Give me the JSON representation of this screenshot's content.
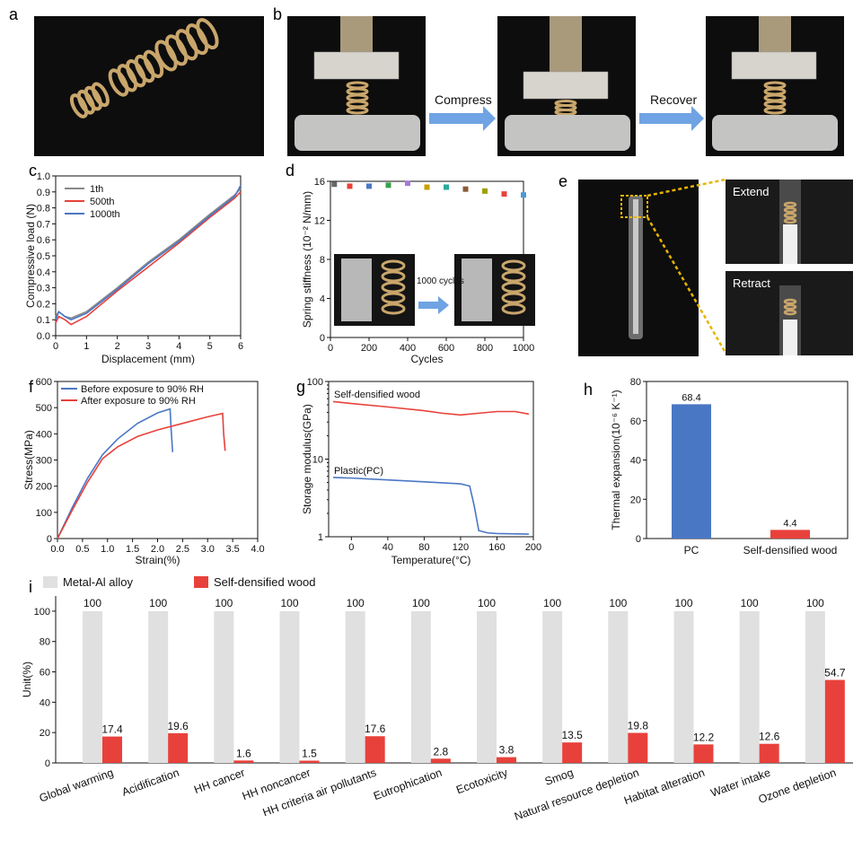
{
  "panels": {
    "a": "a",
    "b": "b",
    "c": "c",
    "d": "d",
    "e": "e",
    "f": "f",
    "g": "g",
    "h": "h",
    "i": "i"
  },
  "panel_b": {
    "compress_label": "Compress",
    "recover_label": "Recover"
  },
  "panel_d_inset": {
    "cycles_label": "1000 cycles"
  },
  "panel_e": {
    "extend_label": "Extend",
    "retract_label": "Retract"
  },
  "colors": {
    "red": "#e8413b",
    "blue": "#4a77c4",
    "gray": "#e0e0e0",
    "yellow": "#e7b400"
  },
  "chart_data": [
    {
      "id": "c",
      "type": "line",
      "xlabel": "Displacement (mm)",
      "ylabel": "Compressive load (N)",
      "xlim": [
        0,
        6
      ],
      "ylim": [
        0,
        1.0
      ],
      "xticks": [
        "0",
        "1",
        "2",
        "3",
        "4",
        "5",
        "6"
      ],
      "yticks": [
        "0.0",
        "0.1",
        "0.2",
        "0.3",
        "0.4",
        "0.5",
        "0.6",
        "0.7",
        "0.8",
        "0.9",
        "1.0"
      ],
      "series": [
        {
          "name": "1th",
          "color": "#888888",
          "x": [
            0,
            0.1,
            0.3,
            0.5,
            1,
            2,
            3,
            4,
            5,
            5.8,
            6
          ],
          "y": [
            0.12,
            0.15,
            0.12,
            0.11,
            0.15,
            0.3,
            0.46,
            0.6,
            0.76,
            0.88,
            0.92
          ]
        },
        {
          "name": "500th",
          "color": "#e8413b",
          "x": [
            0,
            0.1,
            0.3,
            0.5,
            1,
            2,
            3,
            4,
            5,
            5.8,
            6
          ],
          "y": [
            0.08,
            0.12,
            0.1,
            0.07,
            0.12,
            0.28,
            0.43,
            0.58,
            0.74,
            0.86,
            0.9
          ]
        },
        {
          "name": "1000th",
          "color": "#4a77c4",
          "x": [
            0,
            0.1,
            0.3,
            0.5,
            1,
            2,
            3,
            4,
            5,
            5.8,
            6
          ],
          "y": [
            0.1,
            0.15,
            0.12,
            0.1,
            0.14,
            0.29,
            0.45,
            0.59,
            0.75,
            0.87,
            0.94
          ]
        }
      ]
    },
    {
      "id": "d",
      "type": "scatter",
      "xlabel": "Cycles",
      "ylabel": "Spring stiffness (10⁻² N/mm)",
      "xlim": [
        0,
        1000
      ],
      "ylim": [
        0,
        16
      ],
      "xticks": [
        "0",
        "200",
        "400",
        "600",
        "800",
        "1000"
      ],
      "yticks": [
        "0",
        "4",
        "8",
        "12",
        "16"
      ],
      "x": [
        20,
        100,
        200,
        300,
        400,
        500,
        600,
        700,
        800,
        900,
        1000
      ],
      "y": [
        15.7,
        15.5,
        15.5,
        15.6,
        15.8,
        15.4,
        15.4,
        15.2,
        15.0,
        14.7,
        14.6
      ],
      "colors": [
        "#666666",
        "#e8413b",
        "#4a77c4",
        "#3aa04a",
        "#a678d8",
        "#c8a000",
        "#2aaa9a",
        "#8a5a3a",
        "#a0a000",
        "#e8413b",
        "#4a9ad8"
      ]
    },
    {
      "id": "f",
      "type": "line",
      "xlabel": "Strain(%)",
      "ylabel": "Stress(MPa)",
      "xlim": [
        0,
        4.0
      ],
      "ylim": [
        0,
        600
      ],
      "xticks": [
        "0.0",
        "0.5",
        "1.0",
        "1.5",
        "2.0",
        "2.5",
        "3.0",
        "3.5",
        "4.0"
      ],
      "yticks": [
        "0",
        "100",
        "200",
        "300",
        "400",
        "500",
        "600"
      ],
      "series": [
        {
          "name": "Before exposure to 90% RH",
          "color": "#4a77c4",
          "x": [
            0,
            0.3,
            0.6,
            0.9,
            1.2,
            1.6,
            2.0,
            2.25,
            2.27,
            2.3
          ],
          "y": [
            0,
            120,
            230,
            320,
            380,
            440,
            480,
            495,
            420,
            330
          ]
        },
        {
          "name": "After exposure to 90% RH",
          "color": "#e8413b",
          "x": [
            0,
            0.3,
            0.6,
            0.9,
            1.2,
            1.6,
            2.0,
            2.5,
            3.0,
            3.3,
            3.32,
            3.35
          ],
          "y": [
            0,
            110,
            215,
            305,
            350,
            390,
            415,
            440,
            465,
            478,
            400,
            335
          ]
        }
      ]
    },
    {
      "id": "g",
      "type": "line",
      "xlabel": "Temperature(°C)",
      "ylabel": "Storage modulus(GPa)",
      "xlim": [
        -25,
        200
      ],
      "ylog": true,
      "ylim": [
        1,
        100
      ],
      "xticks": [
        "0",
        "40",
        "80",
        "120",
        "160",
        "200"
      ],
      "yticks": [
        "1",
        "10",
        "100"
      ],
      "series": [
        {
          "name": "Self-densified wood",
          "color": "#e8413b",
          "x": [
            -20,
            0,
            40,
            80,
            100,
            120,
            140,
            160,
            180,
            195
          ],
          "y": [
            55,
            52,
            47,
            42,
            39,
            37,
            39,
            41,
            41,
            38
          ]
        },
        {
          "name": "Plastic(PC)",
          "color": "#4a77c4",
          "x": [
            -20,
            0,
            40,
            80,
            120,
            130,
            135,
            140,
            150,
            160,
            195
          ],
          "y": [
            5.8,
            5.7,
            5.4,
            5.1,
            4.8,
            4.5,
            2.5,
            1.2,
            1.12,
            1.1,
            1.08
          ]
        }
      ]
    },
    {
      "id": "h",
      "type": "bar",
      "ylabel": "Thermal expansion(10⁻⁶ K⁻¹)",
      "ylim": [
        0,
        80
      ],
      "yticks": [
        "0",
        "20",
        "40",
        "60",
        "80"
      ],
      "categories": [
        "PC",
        "Self-densified wood"
      ],
      "values": [
        68.4,
        4.4
      ],
      "value_labels": [
        "68.4",
        "4.4"
      ],
      "colors": [
        "#4a77c4",
        "#e8413b"
      ]
    },
    {
      "id": "i",
      "type": "bar",
      "ylabel": "Unit(%)",
      "ylim": [
        0,
        110
      ],
      "yticks": [
        "0",
        "20",
        "40",
        "60",
        "80",
        "100"
      ],
      "categories": [
        "Global warming",
        "Acidification",
        "HH cancer",
        "HH noncancer",
        "HH criteria air pollutants",
        "Eutrophication",
        "Ecotoxicity",
        "Smog",
        "Natural resource depletion",
        "Habitat alteration",
        "Water intake",
        "Ozone depletion"
      ],
      "series": [
        {
          "name": "Metal-Al alloy",
          "color": "#e0e0e0",
          "values": [
            100,
            100,
            100,
            100,
            100,
            100,
            100,
            100,
            100,
            100,
            100,
            100
          ],
          "labels": [
            "100",
            "100",
            "100",
            "100",
            "100",
            "100",
            "100",
            "100",
            "100",
            "100",
            "100",
            "100"
          ]
        },
        {
          "name": "Self-densified wood",
          "color": "#e8413b",
          "values": [
            17.4,
            19.6,
            1.6,
            1.5,
            17.6,
            2.8,
            3.8,
            13.5,
            19.8,
            12.2,
            12.6,
            54.7
          ],
          "labels": [
            "17.4",
            "19.6",
            "1.6",
            "1.5",
            "17.6",
            "2.8",
            "3.8",
            "13.5",
            "19.8",
            "12.2",
            "12.6",
            "54.7"
          ]
        }
      ]
    }
  ]
}
